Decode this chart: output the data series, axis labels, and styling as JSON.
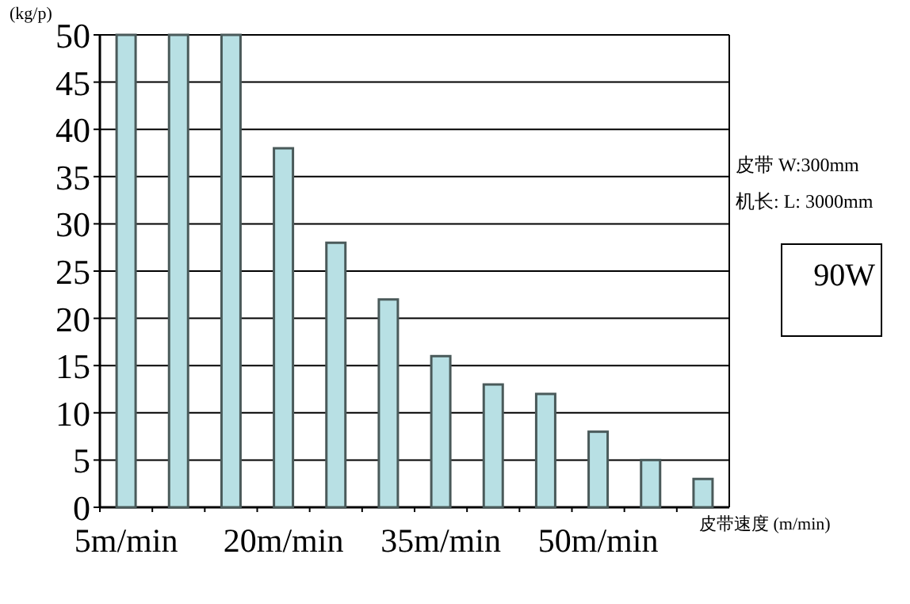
{
  "chart_data": {
    "type": "bar",
    "ylabel": "(kg/p)",
    "xlabel": "皮带速度 (m/min)",
    "categories": [
      "5m/min",
      null,
      null,
      "20m/min",
      null,
      null,
      "35m/min",
      null,
      null,
      "50m/min",
      null,
      null
    ],
    "values": [
      50,
      50,
      50,
      38,
      28,
      22,
      16,
      13,
      12,
      8,
      5,
      3
    ],
    "color": "#b8e0e4",
    "ylim": [
      0,
      50
    ],
    "yticks": [
      0,
      5,
      10,
      15,
      20,
      25,
      30,
      35,
      40,
      45,
      50
    ],
    "grid": "y",
    "annotations": [
      "皮带 W:300mm",
      "机长: L: 3000mm",
      "90W"
    ]
  }
}
